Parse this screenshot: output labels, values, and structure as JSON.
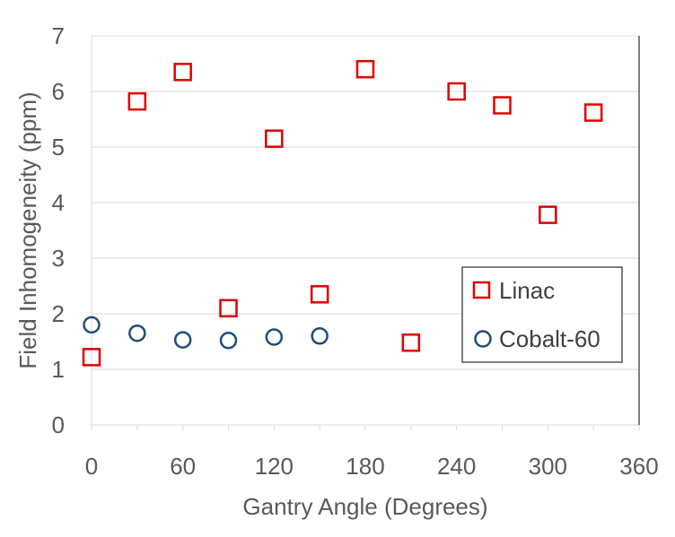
{
  "chart_data": {
    "type": "scatter",
    "xlabel": "Gantry Angle (Degrees)",
    "ylabel": "Field Inhomogeneity (ppm)",
    "xlim": [
      0,
      360
    ],
    "ylim": [
      0,
      7
    ],
    "xticks": [
      0,
      60,
      120,
      180,
      240,
      300,
      360
    ],
    "yticks": [
      0,
      1,
      2,
      3,
      4,
      5,
      6,
      7
    ],
    "grid": "horizontal",
    "legend_position": "bottom-right",
    "series": [
      {
        "name": "Linac",
        "marker": "square",
        "color": "#e00000",
        "x": [
          0,
          30,
          60,
          90,
          120,
          150,
          180,
          210,
          240,
          270,
          300,
          330
        ],
        "y": [
          1.22,
          5.82,
          6.35,
          2.1,
          5.15,
          2.35,
          6.4,
          1.48,
          6.0,
          5.75,
          3.78,
          5.62
        ]
      },
      {
        "name": "Cobalt-60",
        "marker": "circle",
        "color": "#1f4e79",
        "x": [
          0,
          30,
          60,
          90,
          120,
          150
        ],
        "y": [
          1.8,
          1.65,
          1.53,
          1.52,
          1.58,
          1.6
        ]
      }
    ]
  }
}
